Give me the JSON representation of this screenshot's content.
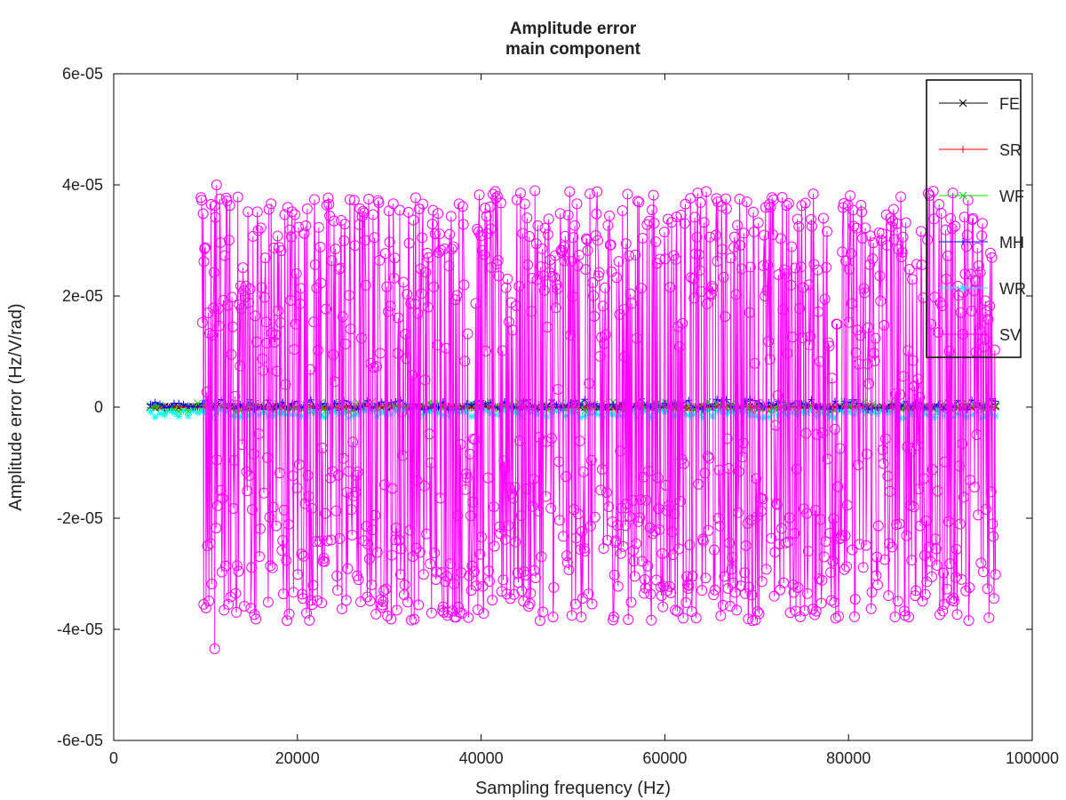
{
  "chart_data": {
    "type": "line",
    "title": [
      "Amplitude error",
      "main component"
    ],
    "xlabel": "Sampling frequency (Hz)",
    "ylabel": "Amplitude error (Hz/V/rad)",
    "xlim": [
      0,
      100000
    ],
    "ylim": [
      -6e-05,
      6e-05
    ],
    "x_ticks": [
      0,
      20000,
      40000,
      60000,
      80000,
      100000
    ],
    "x_tick_labels": [
      "0",
      "20000",
      "40000",
      "60000",
      "80000",
      "100000"
    ],
    "y_ticks": [
      6e-05,
      4e-05,
      2e-05,
      0,
      -2e-05,
      -4e-05,
      -6e-05
    ],
    "y_tick_labels": [
      "6e-05",
      "4e-05",
      "2e-05",
      "0",
      "-2e-05",
      "-4e-05",
      "-6e-05"
    ],
    "grid": false,
    "legend_position": "top-right",
    "series": [
      {
        "name": "FE",
        "color": "#000000",
        "marker": "x",
        "x_range": [
          4000,
          96000
        ],
        "y_band": [
          -1e-07,
          1e-07
        ]
      },
      {
        "name": "SR",
        "color": "#ff0000",
        "marker": "plus",
        "x_range": [
          4000,
          96000
        ],
        "y_band": [
          -2e-07,
          2e-07
        ]
      },
      {
        "name": "WF",
        "color": "#00dd00",
        "marker": "x",
        "x_range": [
          4000,
          96000
        ],
        "y_band": [
          -1e-06,
          1e-06
        ]
      },
      {
        "name": "MH",
        "color": "#0000ff",
        "marker": "plus",
        "x_range": [
          4000,
          96000
        ],
        "y_band": [
          -5e-07,
          1.5e-06
        ]
      },
      {
        "name": "WR",
        "color": "#00ffff",
        "marker": "star",
        "x_range": [
          4000,
          96000
        ],
        "y_band": [
          -2e-06,
          -5e-07
        ]
      },
      {
        "name": "SV",
        "color": "#ff00ff",
        "marker": "circle",
        "x_range": [
          9500,
          96000
        ],
        "y_envelope": [
          -3.85e-05,
          3.9e-05
        ],
        "outliers": [
          {
            "x": 11200,
            "y": 4e-05
          },
          {
            "x": 11000,
            "y": -4.35e-05
          },
          {
            "x": 9800,
            "y": -3.55e-05
          }
        ]
      }
    ]
  }
}
